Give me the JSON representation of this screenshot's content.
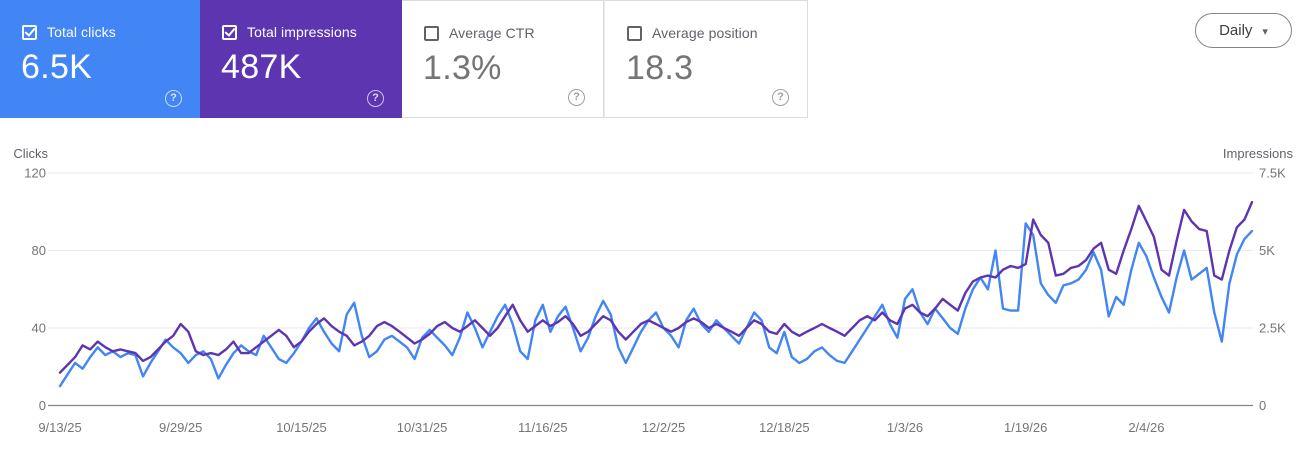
{
  "cards": [
    {
      "label": "Total clicks",
      "value": "6.5K",
      "checked": true,
      "bg": "#4285f4"
    },
    {
      "label": "Total impressions",
      "value": "487K",
      "checked": true,
      "bg": "#5e35b1"
    },
    {
      "label": "Average CTR",
      "value": "1.3%",
      "checked": false,
      "bg": "#ffffff"
    },
    {
      "label": "Average position",
      "value": "18.3",
      "checked": false,
      "bg": "#ffffff"
    }
  ],
  "icons": {
    "help": "?",
    "dropdown_caret": "▾"
  },
  "controls": {
    "date_granularity": "Daily"
  },
  "chart_data": {
    "type": "line",
    "x_tick_labels": [
      "9/13/25",
      "9/29/25",
      "10/15/25",
      "10/31/25",
      "11/16/25",
      "12/2/25",
      "12/18/25",
      "1/3/26",
      "1/19/26",
      "2/4/26"
    ],
    "x_tick_interval_days": 16,
    "grid": true,
    "legend_position": "none",
    "left_axis": {
      "title": "Clicks",
      "ticks": [
        0,
        40,
        80,
        120
      ],
      "tick_labels": [
        "0",
        "40",
        "80",
        "120"
      ],
      "max": 120
    },
    "right_axis": {
      "title": "Impressions",
      "tick_values": [
        0,
        2500,
        5000,
        7500
      ],
      "ticks": [
        "0",
        "2.5K",
        "5K",
        "7.5K"
      ],
      "max": 7500
    },
    "series": [
      {
        "name": "Total clicks",
        "axis": "left",
        "color": "#4285f4",
        "values": [
          10,
          16,
          22,
          19,
          25,
          30,
          26,
          28,
          25,
          27,
          26,
          15,
          22,
          28,
          34,
          30,
          27,
          22,
          26,
          28,
          24,
          14,
          21,
          27,
          31,
          28,
          26,
          36,
          30,
          24,
          22,
          27,
          33,
          40,
          45,
          38,
          32,
          28,
          47,
          53,
          36,
          25,
          28,
          34,
          36,
          33,
          30,
          24,
          35,
          39,
          35,
          31,
          26,
          35,
          48,
          40,
          30,
          38,
          46,
          52,
          42,
          28,
          24,
          44,
          52,
          38,
          46,
          51,
          40,
          28,
          35,
          46,
          54,
          47,
          30,
          22,
          30,
          38,
          44,
          48,
          40,
          36,
          30,
          44,
          50,
          42,
          38,
          44,
          40,
          36,
          32,
          40,
          48,
          44,
          30,
          27,
          38,
          25,
          22,
          24,
          28,
          30,
          26,
          23,
          22,
          28,
          34,
          40,
          46,
          52,
          42,
          35,
          55,
          60,
          48,
          42,
          50,
          45,
          40,
          37,
          50,
          60,
          66,
          60,
          80,
          50,
          49,
          49,
          94,
          88,
          63,
          57,
          53,
          62,
          63,
          65,
          70,
          79,
          70,
          46,
          56,
          52,
          70,
          84,
          77,
          66,
          56,
          48,
          66,
          80,
          65,
          68,
          71,
          48,
          33,
          63,
          78,
          86,
          90
        ]
      },
      {
        "name": "Total impressions",
        "axis": "right",
        "color": "#5e35b1",
        "values": [
          1060,
          1310,
          1560,
          1940,
          1810,
          2060,
          1880,
          1750,
          1810,
          1750,
          1690,
          1440,
          1560,
          1810,
          2060,
          2250,
          2630,
          2380,
          1750,
          1630,
          1690,
          1630,
          1810,
          2060,
          1690,
          1690,
          1880,
          2060,
          2250,
          2440,
          2250,
          1880,
          2060,
          2380,
          2630,
          2810,
          2560,
          2380,
          2250,
          1940,
          2060,
          2250,
          2560,
          2690,
          2560,
          2380,
          2190,
          2000,
          2130,
          2310,
          2560,
          2690,
          2500,
          2380,
          2560,
          2750,
          2500,
          2250,
          2500,
          2880,
          3250,
          2750,
          2380,
          2560,
          2750,
          2560,
          2690,
          2880,
          2630,
          2250,
          2380,
          2630,
          2880,
          2750,
          2380,
          2130,
          2380,
          2630,
          2750,
          2630,
          2500,
          2380,
          2500,
          2690,
          2810,
          2690,
          2500,
          2630,
          2500,
          2380,
          2250,
          2500,
          2750,
          2630,
          2380,
          2310,
          2630,
          2380,
          2250,
          2380,
          2500,
          2630,
          2500,
          2380,
          2250,
          2500,
          2750,
          2880,
          2750,
          3000,
          2750,
          2630,
          3130,
          3250,
          3000,
          2880,
          3130,
          3440,
          3250,
          3060,
          3630,
          4000,
          4130,
          4190,
          4130,
          4380,
          4500,
          4440,
          4560,
          6000,
          5500,
          5250,
          4190,
          4250,
          4440,
          4500,
          4690,
          5060,
          5250,
          4380,
          4250,
          5000,
          5690,
          6440,
          5940,
          5440,
          4380,
          4190,
          5310,
          6310,
          5940,
          5690,
          5630,
          4190,
          4060,
          5000,
          5750,
          6000,
          6560
        ]
      }
    ]
  }
}
